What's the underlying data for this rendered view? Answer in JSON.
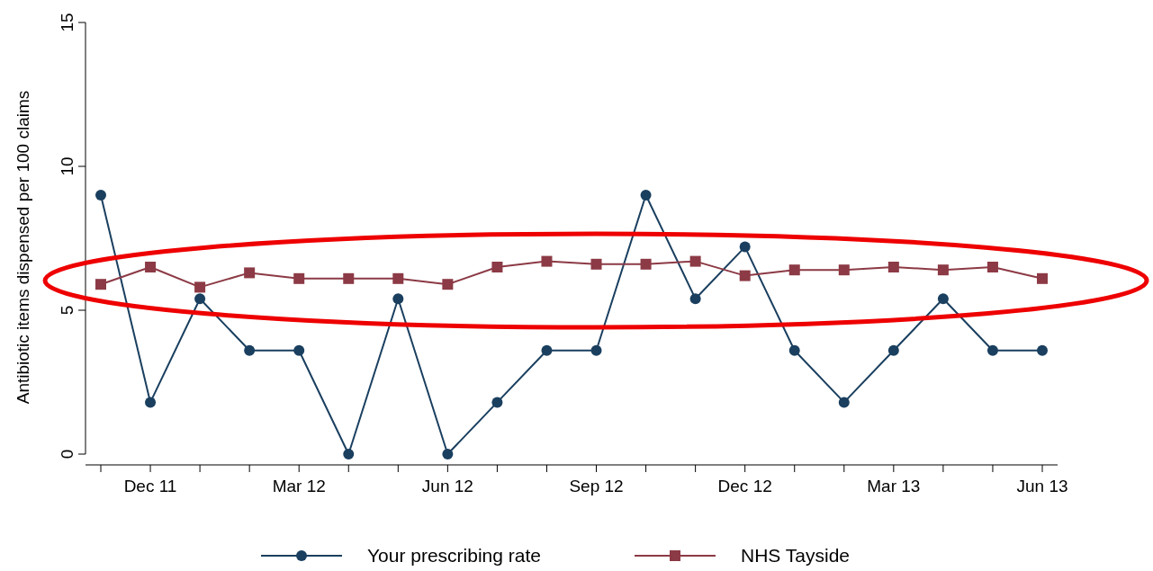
{
  "chart_data": {
    "type": "line",
    "ylabel": "Antibiotic items dispensed per 100 claims",
    "categories": [
      null,
      "Dec 11",
      null,
      null,
      "Mar 12",
      null,
      null,
      "Jun 12",
      null,
      null,
      "Sep 12",
      null,
      null,
      "Dec 12",
      null,
      null,
      "Mar 13",
      null,
      null,
      "Jun 13"
    ],
    "series": [
      {
        "name": "Your prescribing rate",
        "color": "#1a3f5f",
        "marker": "circle",
        "values": [
          9.0,
          1.8,
          5.4,
          3.6,
          3.6,
          0,
          5.4,
          0,
          1.8,
          3.6,
          3.6,
          9.0,
          5.4,
          7.2,
          3.6,
          1.8,
          3.6,
          5.4,
          3.6,
          3.6
        ]
      },
      {
        "name": "NHS Tayside",
        "color": "#8c3a45",
        "marker": "square",
        "values": [
          5.9,
          6.5,
          5.8,
          6.3,
          6.1,
          6.1,
          6.1,
          5.9,
          6.5,
          6.7,
          6.6,
          6.6,
          6.7,
          6.2,
          6.4,
          6.4,
          6.5,
          6.4,
          6.5,
          6.1
        ]
      }
    ],
    "ylim": [
      0,
      15
    ],
    "yticks": [
      0,
      5,
      10,
      15
    ],
    "grid": false,
    "legend": "bottom"
  }
}
